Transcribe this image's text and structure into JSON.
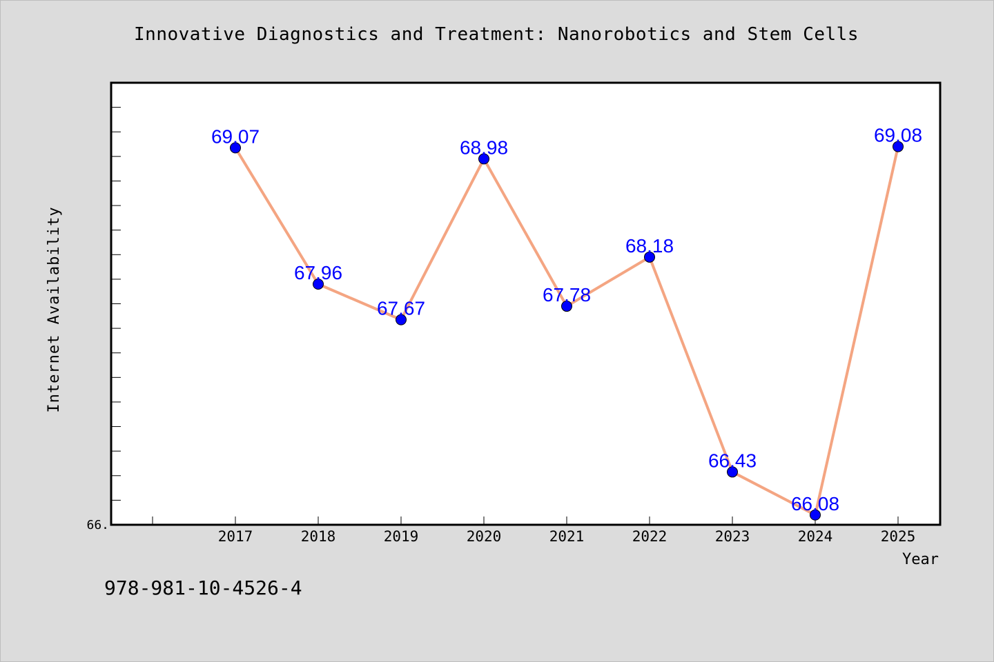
{
  "title": "Innovative Diagnostics and Treatment: Nanorobotics and Stem Cells",
  "footer_text": "978-981-10-4526-4",
  "colors": {
    "background": "#dcdcdc",
    "plot_background": "#ffffff",
    "line": "#f4a582",
    "marker": "#0000ff",
    "data_label": "#0000ff"
  },
  "chart_data": {
    "type": "line",
    "title": "Innovative Diagnostics and Treatment: Nanorobotics and Stem Cells",
    "xlabel": "Year",
    "ylabel": "Internet Availability",
    "categories": [
      "2017",
      "2018",
      "2019",
      "2020",
      "2021",
      "2022",
      "2023",
      "2024",
      "2025"
    ],
    "series": [
      {
        "values": [
          69.07,
          67.96,
          67.67,
          68.98,
          67.78,
          68.18,
          66.43,
          66.08,
          69.08
        ],
        "labels": [
          "69.07",
          "67.96",
          "67.67",
          "68.98",
          "67.78",
          "68.18",
          "66.43",
          "66.08",
          "69.08"
        ]
      }
    ],
    "ylim": [
      66.0,
      69.6
    ],
    "y_tick_labels": [
      "66."
    ],
    "grid": false,
    "legend": "none"
  }
}
